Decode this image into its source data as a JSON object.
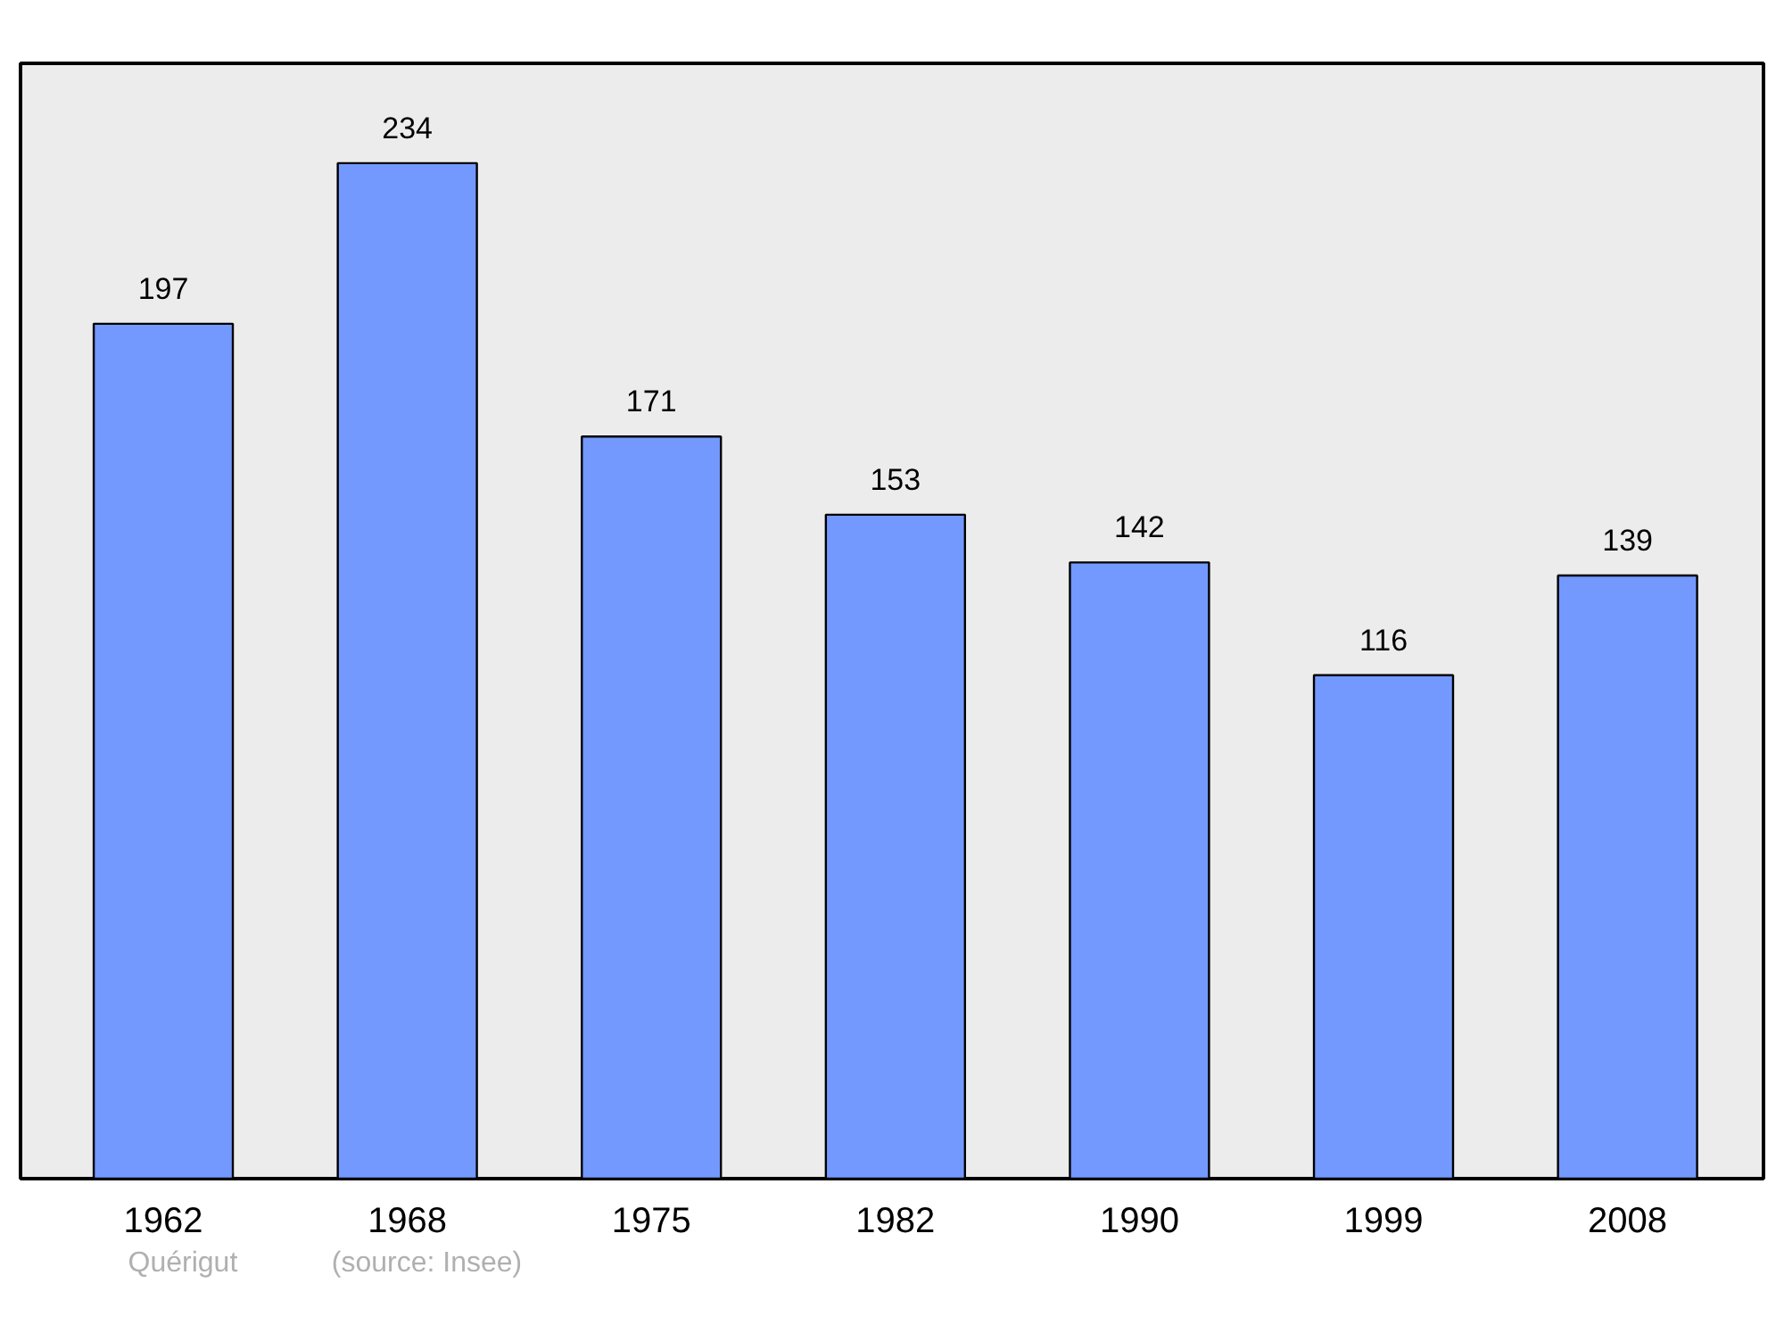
{
  "chart_data": {
    "type": "bar",
    "categories": [
      "1962",
      "1968",
      "1975",
      "1982",
      "1990",
      "1999",
      "2008"
    ],
    "values": [
      197,
      234,
      171,
      153,
      142,
      116,
      139
    ],
    "color": "#7399ff",
    "ylim": [
      0,
      257
    ],
    "data_labels": true,
    "tick_labels": "x",
    "grid": false,
    "annotations": [
      "Quérigut",
      "(source: Insee)"
    ]
  }
}
